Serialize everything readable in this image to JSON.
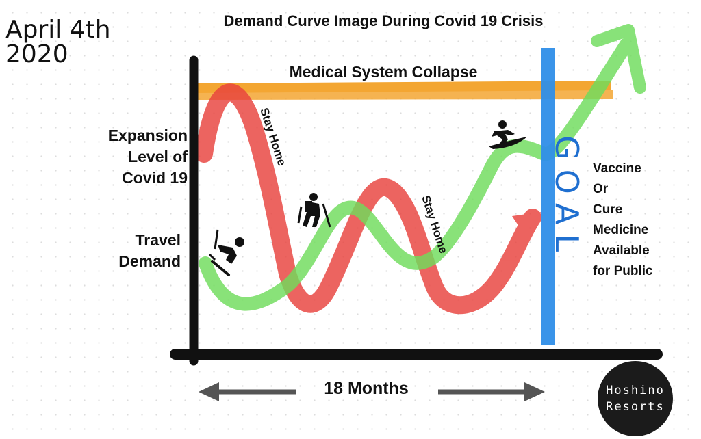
{
  "date": {
    "line1": "April 4th",
    "line2": "2020"
  },
  "title": "Demand Curve Image During Covid 19 Crisis",
  "collapse_label": "Medical System Collapse",
  "expansion_label": [
    "Expansion",
    "Level of",
    "Covid 19"
  ],
  "travel_label": [
    "Travel",
    "Demand"
  ],
  "stay_home_1": "Stay Home",
  "stay_home_2": "Stay Home",
  "goal_label": "GOAL",
  "vaccine_label": [
    "Vaccine",
    "Or",
    "Cure",
    "Medicine",
    "Available",
    "for Public"
  ],
  "months_label": "18 Months",
  "logo": {
    "line1": "Hoshino",
    "line2": "Resorts"
  },
  "icons": [
    "skier-icon",
    "hiker-icon",
    "surfer-icon"
  ],
  "colors": {
    "covid_curve": "#e8423d",
    "travel_curve": "#6fdc5c",
    "collapse_band": "#f3a632",
    "goal_line": "#2f8ee8",
    "axis": "#111111",
    "arrow_gray": "#555555"
  }
}
